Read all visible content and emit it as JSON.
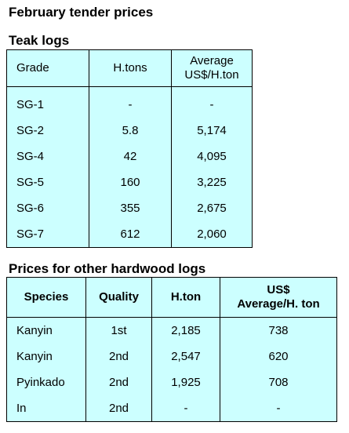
{
  "title": "February tender prices",
  "teak": {
    "heading": "Teak logs",
    "headers": {
      "grade": "Grade",
      "htons": "H.tons",
      "avg_line1": "Average",
      "avg_line2": "US$/H.ton"
    },
    "rows": [
      {
        "grade": "SG-1",
        "htons": "-",
        "avg": "-"
      },
      {
        "grade": "SG-2",
        "htons": "5.8",
        "avg": "5,174"
      },
      {
        "grade": "SG-4",
        "htons": "42",
        "avg": "4,095"
      },
      {
        "grade": "SG-5",
        "htons": "160",
        "avg": "3,225"
      },
      {
        "grade": "SG-6",
        "htons": "355",
        "avg": "2,675"
      },
      {
        "grade": "SG-7",
        "htons": "612",
        "avg": "2,060"
      }
    ]
  },
  "other": {
    "heading": "Prices for other hardwood logs",
    "headers": {
      "species": "Species",
      "quality": "Quality",
      "hton": "H.ton",
      "avg_line1": "US$",
      "avg_line2": "Average/H. ton"
    },
    "rows": [
      {
        "species": "Kanyin",
        "quality": "1st",
        "hton": "2,185",
        "avg": "738"
      },
      {
        "species": "Kanyin",
        "quality": "2nd",
        "hton": "2,547",
        "avg": "620"
      },
      {
        "species": "Pyinkado",
        "quality": "2nd",
        "hton": "1,925",
        "avg": "708"
      },
      {
        "species": "In",
        "quality": "2nd",
        "hton": "-",
        "avg": "-"
      }
    ]
  }
}
